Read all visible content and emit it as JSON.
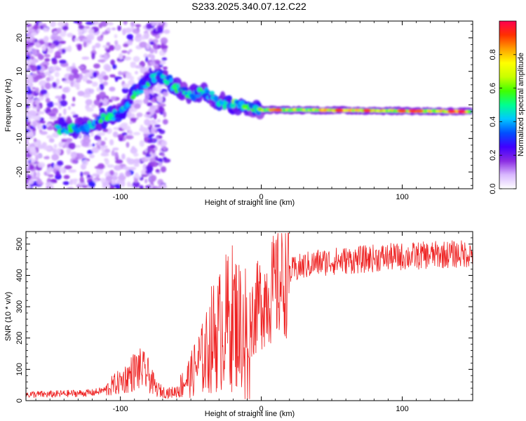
{
  "chart_data": [
    {
      "type": "heatmap",
      "title": "S233.2025.340.07.12.C22",
      "xlabel": "Height of straight line (km)",
      "ylabel": "Frequency (Hz)",
      "xlim": [
        -167,
        150
      ],
      "ylim": [
        -25,
        25
      ],
      "xticks": [
        -100,
        0,
        100
      ],
      "yticks": [
        -20,
        -10,
        0,
        10,
        20
      ],
      "colorbar": {
        "label": "Normalized spectral amplitude",
        "range": [
          0.0,
          1.0
        ],
        "ticks": [
          0.0,
          0.2,
          0.4,
          0.6,
          0.8
        ],
        "colors": [
          "#ffffff",
          "#d9b8ff",
          "#8a2be2",
          "#4000ff",
          "#0050ff",
          "#00c8ff",
          "#00ff90",
          "#40ff00",
          "#c8ff00",
          "#ffff00",
          "#ffa000",
          "#ff3000",
          "#ff0050"
        ]
      },
      "ridge": {
        "x": [
          -140,
          -120,
          -100,
          -90,
          -80,
          -70,
          -60,
          -50,
          -40,
          -30,
          -20,
          -10,
          0,
          20,
          50,
          100,
          150
        ],
        "y": [
          -7,
          -6,
          -2,
          3,
          7,
          9,
          5,
          3,
          4,
          1,
          0,
          -1,
          -1.5,
          -1.5,
          -1.6,
          -1.8,
          -2
        ]
      }
    },
    {
      "type": "line",
      "xlabel": "Height of straight line (km)",
      "ylabel": "SNR (10 * v/v)",
      "xlim": [
        -167,
        150
      ],
      "ylim": [
        0,
        540
      ],
      "xticks": [
        -100,
        0,
        100
      ],
      "yticks": [
        0,
        100,
        200,
        300,
        400,
        500
      ],
      "series": [
        {
          "name": "SNR",
          "color": "#ee2222",
          "x": [
            -167,
            -150,
            -140,
            -120,
            -110,
            -105,
            -100,
            -95,
            -90,
            -85,
            -80,
            -75,
            -70,
            -65,
            -60,
            -55,
            -50,
            -45,
            -40,
            -35,
            -30,
            -25,
            -20,
            -15,
            -10,
            -5,
            0,
            5,
            10,
            15,
            20,
            30,
            40,
            50,
            60,
            70,
            80,
            90,
            100,
            110,
            120,
            130,
            140,
            150
          ],
          "values": [
            20,
            20,
            22,
            25,
            35,
            50,
            60,
            75,
            95,
            100,
            80,
            40,
            28,
            25,
            30,
            60,
            80,
            120,
            140,
            200,
            220,
            250,
            270,
            240,
            250,
            280,
            320,
            340,
            360,
            380,
            410,
            430,
            440,
            445,
            448,
            450,
            455,
            458,
            460,
            462,
            465,
            467,
            468,
            470
          ]
        }
      ]
    }
  ]
}
